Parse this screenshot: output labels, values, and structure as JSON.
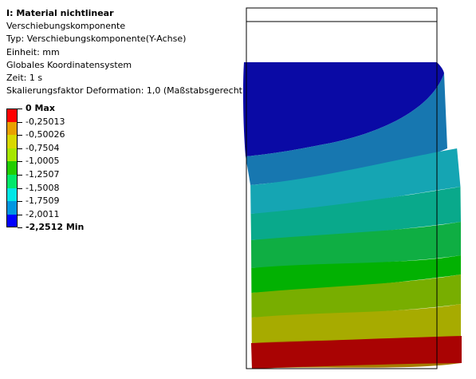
{
  "info": {
    "title": "I: Material nichtlinear",
    "lines": [
      "Verschiebungskomponente",
      "Typ: Verschiebungskomponente(Y-Achse)",
      "Einheit: mm",
      "Globales Koordinatensystem",
      "Zeit: 1 s",
      "Skalierungsfaktor Deformation: 1,0 (Maßstabsgerecht)"
    ]
  },
  "legend": {
    "labels": [
      "0 Max",
      "-0,25013",
      "-0,50026",
      "-0,7504",
      "-1,0005",
      "-1,2507",
      "-1,5008",
      "-1,7509",
      "-2,0011",
      "-2,2512 Min"
    ],
    "colors": [
      "#ff0000",
      "#e8a000",
      "#d8d800",
      "#a6e600",
      "#22cc00",
      "#00e86a",
      "#00e6e6",
      "#0096e0",
      "#0000ff"
    ],
    "max_label_index": 0,
    "min_label_index": 9
  },
  "contour": {
    "band_colors": [
      "#0a0aa5",
      "#1777b0",
      "#15a5b3",
      "#09a98b",
      "#0fae43",
      "#02b102",
      "#78ae00",
      "#a7ab00",
      "#a57b00",
      "#a90303"
    ]
  }
}
